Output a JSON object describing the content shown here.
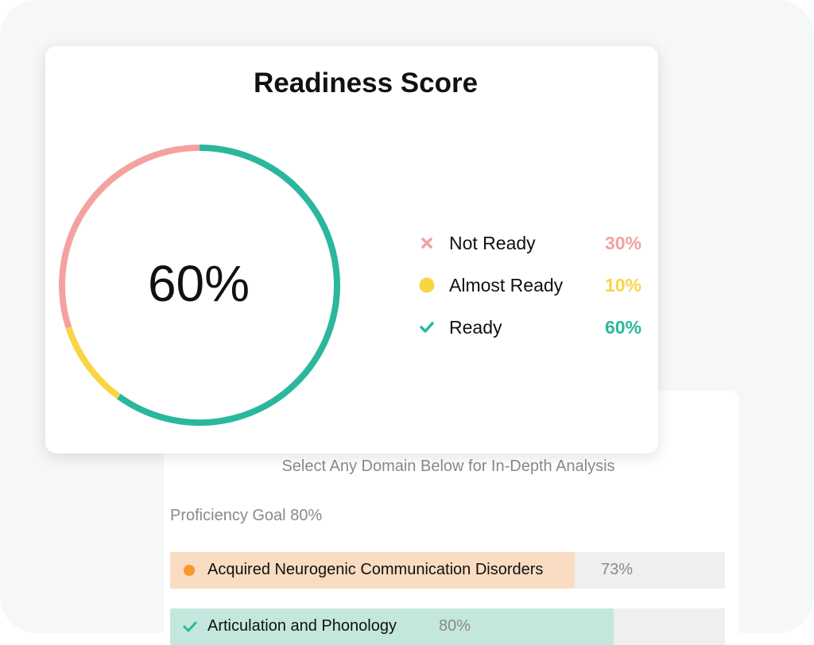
{
  "score_card": {
    "title": "Readiness Score",
    "center_value": "60%",
    "legend": [
      {
        "label": "Not Ready",
        "value": "30%",
        "color": "#f2a3a0",
        "icon": "x-icon"
      },
      {
        "label": "Almost Ready",
        "value": "10%",
        "color": "#f9d544",
        "icon": "dot-icon"
      },
      {
        "label": "Ready",
        "value": "60%",
        "color": "#2bb79c",
        "icon": "check-icon"
      }
    ]
  },
  "domains": {
    "hint": "Select Any Domain Below for In-Depth Analysis",
    "goal_label": "Proficiency Goal 80%",
    "goal_fraction": 0.8,
    "rows": [
      {
        "label": "Acquired Neurogenic Communication Disorders",
        "value": "73%",
        "fraction": 0.73,
        "fill_color": "#f9dcc1",
        "icon": "dot-icon",
        "icon_color": "#f7962e"
      },
      {
        "label": "Articulation and Phonology",
        "value": "80%",
        "fraction": 0.8,
        "fill_color": "#c4e7dd",
        "icon": "check-icon",
        "icon_color": "#2bb79c"
      }
    ]
  },
  "chart_data": {
    "type": "pie",
    "title": "Readiness Score",
    "categories": [
      "Not Ready",
      "Almost Ready",
      "Ready"
    ],
    "values": [
      30,
      10,
      60
    ],
    "colors": [
      "#f2a3a0",
      "#f9d544",
      "#2bb79c"
    ],
    "center_label": "60%"
  }
}
